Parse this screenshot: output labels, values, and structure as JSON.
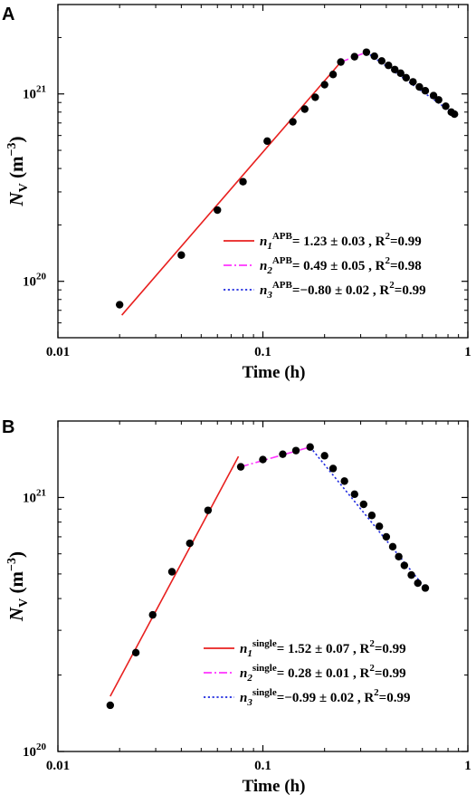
{
  "chart_data": [
    {
      "panel_label": "A",
      "type": "scatter",
      "xlabel": "Time (h)",
      "ylabel_main": "N",
      "ylabel_sub": "V",
      "ylabel_unit": "(m",
      "ylabel_unit_exp": "−3",
      "ylabel_unit_close": ")",
      "xscale": "log",
      "yscale": "log",
      "xlim": [
        0.01,
        1
      ],
      "ylim": [
        5e+19,
        3e+21
      ],
      "x_ticks": [
        {
          "value": 0.01,
          "label": "0.01"
        },
        {
          "value": 0.1,
          "label": "0.1"
        },
        {
          "value": 1,
          "label": "1"
        }
      ],
      "y_ticks": [
        {
          "value": 1e+20,
          "base": "10",
          "exp": "20"
        },
        {
          "value": 1e+21,
          "base": "10",
          "exp": "21"
        }
      ],
      "points": [
        {
          "x": 0.02,
          "y": 7.5e+19
        },
        {
          "x": 0.04,
          "y": 1.38e+20
        },
        {
          "x": 0.06,
          "y": 2.4e+20
        },
        {
          "x": 0.08,
          "y": 3.4e+20
        },
        {
          "x": 0.105,
          "y": 5.6e+20
        },
        {
          "x": 0.14,
          "y": 7.1e+20
        },
        {
          "x": 0.16,
          "y": 8.3e+20
        },
        {
          "x": 0.18,
          "y": 9.6e+20
        },
        {
          "x": 0.2,
          "y": 1.12e+21
        },
        {
          "x": 0.22,
          "y": 1.27e+21
        },
        {
          "x": 0.24,
          "y": 1.48e+21
        },
        {
          "x": 0.28,
          "y": 1.58e+21
        },
        {
          "x": 0.32,
          "y": 1.67e+21
        },
        {
          "x": 0.35,
          "y": 1.59e+21
        },
        {
          "x": 0.38,
          "y": 1.5e+21
        },
        {
          "x": 0.41,
          "y": 1.42e+21
        },
        {
          "x": 0.44,
          "y": 1.35e+21
        },
        {
          "x": 0.47,
          "y": 1.29e+21
        },
        {
          "x": 0.5,
          "y": 1.22e+21
        },
        {
          "x": 0.54,
          "y": 1.16e+21
        },
        {
          "x": 0.58,
          "y": 1.09e+21
        },
        {
          "x": 0.62,
          "y": 1.04e+21
        },
        {
          "x": 0.68,
          "y": 9.8e+20
        },
        {
          "x": 0.72,
          "y": 9.3e+20
        },
        {
          "x": 0.78,
          "y": 8.6e+20
        },
        {
          "x": 0.83,
          "y": 8e+20
        },
        {
          "x": 0.86,
          "y": 7.8e+20
        }
      ],
      "fits": [
        {
          "style": "solid",
          "color": "#e8201f",
          "x": [
            0.0205,
            0.24
          ],
          "y": [
            6.6e+19,
            1.48e+21
          ]
        },
        {
          "style": "dashdot",
          "color": "#ff33ff",
          "x": [
            0.24,
            0.32
          ],
          "y": [
            1.48e+21,
            1.67e+21
          ]
        },
        {
          "style": "dotted",
          "color": "#1f2adf",
          "x": [
            0.32,
            0.86
          ],
          "y": [
            1.67e+21,
            7.8e+20
          ]
        }
      ],
      "legend": {
        "placement": "bottom-right",
        "entries": [
          {
            "style": "solid",
            "color": "#e8201f",
            "sym": "n",
            "idx": "1",
            "sup": "APB",
            "text": "= 1.23 ± 0.03 , R",
            "r2_sup": "2",
            "r2_val": "=0.99"
          },
          {
            "style": "dashdot",
            "color": "#ff33ff",
            "sym": "n",
            "idx": "2",
            "sup": "APB",
            "text": "= 0.49 ± 0.05 , R",
            "r2_sup": "2",
            "r2_val": "=0.98"
          },
          {
            "style": "dotted",
            "color": "#1f2adf",
            "sym": "n",
            "idx": "3",
            "sup": "APB",
            "text": "=−0.80 ± 0.02 , R",
            "r2_sup": "2",
            "r2_val": "=0.99"
          }
        ]
      }
    },
    {
      "panel_label": "B",
      "type": "scatter",
      "xlabel": "Time (h)",
      "ylabel_main": "N",
      "ylabel_sub": "V",
      "ylabel_unit": "(m",
      "ylabel_unit_exp": "−3",
      "ylabel_unit_close": ")",
      "xscale": "log",
      "yscale": "log",
      "xlim": [
        0.01,
        1
      ],
      "ylim": [
        1e+20,
        2e+21
      ],
      "x_ticks": [
        {
          "value": 0.01,
          "label": "0.01"
        },
        {
          "value": 0.1,
          "label": "0.1"
        },
        {
          "value": 1,
          "label": "1"
        }
      ],
      "y_ticks": [
        {
          "value": 1e+20,
          "base": "10",
          "exp": "20"
        },
        {
          "value": 1e+21,
          "base": "10",
          "exp": "21"
        }
      ],
      "points": [
        {
          "x": 0.018,
          "y": 1.52e+20
        },
        {
          "x": 0.024,
          "y": 2.45e+20
        },
        {
          "x": 0.029,
          "y": 3.45e+20
        },
        {
          "x": 0.036,
          "y": 5.1e+20
        },
        {
          "x": 0.044,
          "y": 6.6e+20
        },
        {
          "x": 0.054,
          "y": 8.9e+20
        },
        {
          "x": 0.078,
          "y": 1.32e+21
        },
        {
          "x": 0.1,
          "y": 1.41e+21
        },
        {
          "x": 0.125,
          "y": 1.48e+21
        },
        {
          "x": 0.145,
          "y": 1.53e+21
        },
        {
          "x": 0.17,
          "y": 1.58e+21
        },
        {
          "x": 0.2,
          "y": 1.46e+21
        },
        {
          "x": 0.22,
          "y": 1.3e+21
        },
        {
          "x": 0.25,
          "y": 1.16e+21
        },
        {
          "x": 0.28,
          "y": 1.03e+21
        },
        {
          "x": 0.31,
          "y": 9.4e+20
        },
        {
          "x": 0.34,
          "y": 8.5e+20
        },
        {
          "x": 0.37,
          "y": 7.7e+20
        },
        {
          "x": 0.4,
          "y": 7e+20
        },
        {
          "x": 0.43,
          "y": 6.4e+20
        },
        {
          "x": 0.46,
          "y": 5.85e+20
        },
        {
          "x": 0.49,
          "y": 5.4e+20
        },
        {
          "x": 0.53,
          "y": 4.95e+20
        },
        {
          "x": 0.57,
          "y": 4.6e+20
        },
        {
          "x": 0.62,
          "y": 4.4e+20
        }
      ],
      "fits": [
        {
          "style": "solid",
          "color": "#e8201f",
          "x": [
            0.018,
            0.076
          ],
          "y": [
            1.65e+20,
            1.45e+21
          ]
        },
        {
          "style": "dashdot",
          "color": "#ff33ff",
          "x": [
            0.078,
            0.17
          ],
          "y": [
            1.32e+21,
            1.58e+21
          ]
        },
        {
          "style": "dotted",
          "color": "#1f2adf",
          "x": [
            0.17,
            0.62
          ],
          "y": [
            1.58e+21,
            4.4e+20
          ]
        }
      ],
      "legend": {
        "placement": "bottom-right",
        "entries": [
          {
            "style": "solid",
            "color": "#e8201f",
            "sym": "n",
            "idx": "1",
            "sup": "single",
            "text": "= 1.52 ± 0.07 , R",
            "r2_sup": "2",
            "r2_val": "=0.99"
          },
          {
            "style": "dashdot",
            "color": "#ff33ff",
            "sym": "n",
            "idx": "2",
            "sup": "single",
            "text": "= 0.28 ± 0.01 , R",
            "r2_sup": "2",
            "r2_val": "=0.99"
          },
          {
            "style": "dotted",
            "color": "#1f2adf",
            "sym": "n",
            "idx": "3",
            "sup": "single",
            "text": "=−0.99 ± 0.02 , R",
            "r2_sup": "2",
            "r2_val": "=0.99"
          }
        ]
      }
    }
  ]
}
